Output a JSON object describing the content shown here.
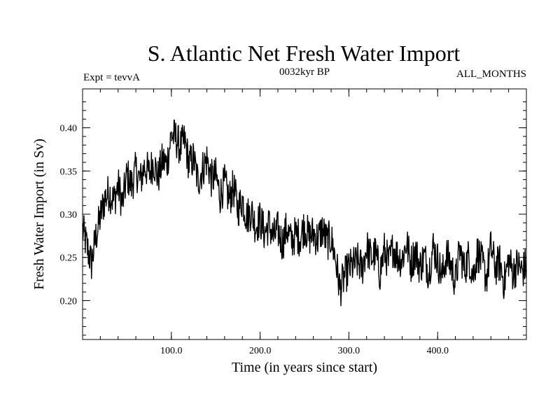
{
  "chart_data": {
    "type": "line",
    "title": "S. Atlantic Net Fresh Water Import",
    "subtitle_left": "Expt = tevvA",
    "subtitle_center": "0032kyr BP",
    "subtitle_right": "ALL_MONTHS",
    "xlabel": "Time (in years since start)",
    "ylabel": "Fresh Water Import (in Sv)",
    "xlim": [
      0,
      500
    ],
    "ylim": [
      0.155,
      0.445
    ],
    "x_ticks": [
      100,
      200,
      300,
      400
    ],
    "x_tick_labels": [
      "100.0",
      "200.0",
      "300.0",
      "400.0"
    ],
    "y_ticks": [
      0.2,
      0.25,
      0.3,
      0.35,
      0.4
    ],
    "y_tick_labels": [
      "0.20",
      "0.25",
      "0.30",
      "0.35",
      "0.40"
    ],
    "grid": false,
    "series": [
      {
        "x": [
          0,
          5,
          10,
          15,
          20,
          25,
          30,
          35,
          40,
          45,
          50,
          55,
          60,
          65,
          70,
          75,
          80,
          85,
          90,
          95,
          100,
          105,
          110,
          115,
          120,
          125,
          130,
          135,
          140,
          145,
          150,
          155,
          160,
          165,
          170,
          175,
          180,
          185,
          190,
          195,
          200,
          205,
          210,
          215,
          220,
          225,
          230,
          235,
          240,
          245,
          250,
          255,
          260,
          265,
          270,
          275,
          280,
          285,
          290,
          295,
          300,
          305,
          310,
          315,
          320,
          325,
          330,
          335,
          340,
          345,
          350,
          355,
          360,
          365,
          370,
          375,
          380,
          385,
          390,
          395,
          400,
          405,
          410,
          415,
          420,
          425,
          430,
          435,
          440,
          445,
          450,
          455,
          460,
          465,
          470,
          475,
          480,
          485,
          490,
          495,
          500
        ],
        "values": [
          0.282,
          0.262,
          0.243,
          0.274,
          0.297,
          0.318,
          0.326,
          0.315,
          0.333,
          0.312,
          0.346,
          0.333,
          0.351,
          0.338,
          0.356,
          0.347,
          0.361,
          0.342,
          0.362,
          0.358,
          0.392,
          0.388,
          0.377,
          0.385,
          0.358,
          0.364,
          0.338,
          0.352,
          0.364,
          0.341,
          0.344,
          0.322,
          0.336,
          0.317,
          0.331,
          0.306,
          0.317,
          0.297,
          0.304,
          0.286,
          0.294,
          0.278,
          0.288,
          0.273,
          0.282,
          0.266,
          0.284,
          0.268,
          0.277,
          0.273,
          0.287,
          0.273,
          0.278,
          0.271,
          0.283,
          0.268,
          0.272,
          0.248,
          0.213,
          0.228,
          0.237,
          0.241,
          0.245,
          0.237,
          0.262,
          0.249,
          0.254,
          0.232,
          0.258,
          0.243,
          0.262,
          0.251,
          0.248,
          0.267,
          0.243,
          0.257,
          0.239,
          0.251,
          0.233,
          0.262,
          0.247,
          0.228,
          0.253,
          0.241,
          0.222,
          0.259,
          0.236,
          0.251,
          0.229,
          0.257,
          0.243,
          0.226,
          0.262,
          0.238,
          0.244,
          0.221,
          0.248,
          0.232,
          0.242,
          0.234,
          0.241
        ]
      }
    ]
  }
}
